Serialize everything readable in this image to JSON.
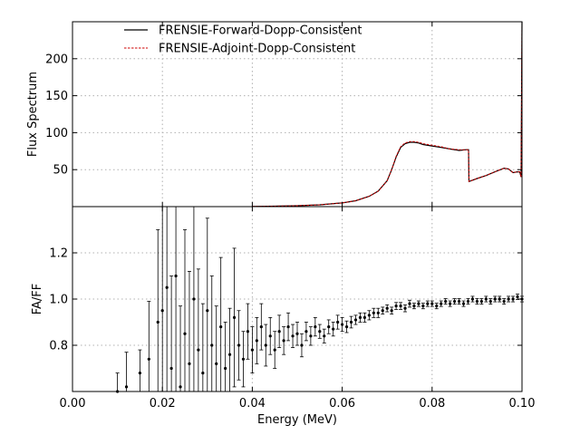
{
  "chart_data": [
    {
      "type": "line",
      "panel": "top",
      "ylabel": "Flux Spectrum",
      "xlim": [
        0.0,
        0.1
      ],
      "ylim": [
        0,
        250
      ],
      "yticks": [
        50,
        100,
        150,
        200
      ],
      "ytick_labels": [
        "50",
        "100",
        "150",
        "200"
      ],
      "grid": true,
      "legend": {
        "placement": "top-left"
      },
      "series": [
        {
          "name": "FRENSIE-Forward-Dopp-Consistent",
          "color": "#000000",
          "style": "solid",
          "x": [
            0.04,
            0.045,
            0.05,
            0.055,
            0.06,
            0.063,
            0.066,
            0.068,
            0.07,
            0.071,
            0.072,
            0.073,
            0.074,
            0.075,
            0.076,
            0.077,
            0.078,
            0.08,
            0.082,
            0.084,
            0.086,
            0.0875,
            0.0881,
            0.0882,
            0.09,
            0.092,
            0.094,
            0.096,
            0.097,
            0.098,
            0.099,
            0.0995,
            0.0998,
            0.1
          ],
          "y": [
            0.2,
            0.6,
            1.2,
            2.5,
            5,
            8,
            14,
            21,
            35,
            50,
            67,
            80,
            85,
            87,
            87,
            86,
            84,
            82,
            80,
            78,
            76,
            77,
            77,
            34,
            38,
            42,
            47,
            52,
            51,
            46,
            47,
            47,
            40,
            250
          ]
        },
        {
          "name": "FRENSIE-Adjoint-Dopp-Consistent",
          "color": "#cc0000",
          "style": "dashed",
          "x": [
            0.04,
            0.045,
            0.05,
            0.055,
            0.06,
            0.063,
            0.066,
            0.068,
            0.07,
            0.071,
            0.072,
            0.073,
            0.074,
            0.075,
            0.076,
            0.077,
            0.078,
            0.08,
            0.082,
            0.084,
            0.086,
            0.0875,
            0.0881,
            0.0882,
            0.09,
            0.092,
            0.094,
            0.096,
            0.097,
            0.098,
            0.099,
            0.0995,
            0.0998,
            0.1
          ],
          "y": [
            0.2,
            0.6,
            1.2,
            2.5,
            5,
            8,
            14,
            21,
            35,
            50,
            68,
            81,
            86,
            88,
            88,
            87,
            85,
            83,
            81,
            78,
            77,
            77,
            77,
            34,
            38,
            42,
            47,
            52,
            51,
            46,
            47,
            47,
            40,
            250
          ]
        }
      ]
    },
    {
      "type": "scatter",
      "panel": "bottom",
      "xlabel": "Energy (MeV)",
      "ylabel": "FA/FF",
      "xlim": [
        0.0,
        0.1
      ],
      "ylim": [
        0.6,
        1.4
      ],
      "xticks": [
        0.0,
        0.02,
        0.04,
        0.06,
        0.08,
        0.1
      ],
      "xtick_labels": [
        "0.00",
        "0.02",
        "0.04",
        "0.06",
        "0.08",
        "0.10"
      ],
      "yticks": [
        0.8,
        1.0,
        1.2
      ],
      "ytick_labels": [
        "0.8",
        "1.0",
        "1.2"
      ],
      "grid": true,
      "error_bars": true,
      "series": [
        {
          "color": "#000000",
          "x": [
            0.01,
            0.012,
            0.015,
            0.017,
            0.019,
            0.02,
            0.021,
            0.022,
            0.023,
            0.024,
            0.025,
            0.026,
            0.027,
            0.028,
            0.029,
            0.03,
            0.031,
            0.032,
            0.033,
            0.034,
            0.035,
            0.036,
            0.037,
            0.038,
            0.039,
            0.04,
            0.041,
            0.042,
            0.043,
            0.044,
            0.045,
            0.046,
            0.047,
            0.048,
            0.049,
            0.05,
            0.051,
            0.052,
            0.053,
            0.054,
            0.055,
            0.056,
            0.057,
            0.058,
            0.059,
            0.06,
            0.061,
            0.062,
            0.063,
            0.064,
            0.065,
            0.066,
            0.067,
            0.068,
            0.069,
            0.07,
            0.071,
            0.072,
            0.073,
            0.074,
            0.075,
            0.076,
            0.077,
            0.078,
            0.079,
            0.08,
            0.081,
            0.082,
            0.083,
            0.084,
            0.085,
            0.086,
            0.087,
            0.088,
            0.089,
            0.09,
            0.091,
            0.092,
            0.093,
            0.094,
            0.095,
            0.096,
            0.097,
            0.098,
            0.099,
            0.1
          ],
          "y": [
            0.6,
            0.62,
            0.68,
            0.74,
            0.9,
            0.95,
            1.05,
            0.7,
            1.1,
            0.62,
            0.85,
            0.72,
            1.0,
            0.78,
            0.68,
            0.95,
            0.8,
            0.72,
            0.88,
            0.7,
            0.76,
            0.92,
            0.8,
            0.74,
            0.86,
            0.78,
            0.82,
            0.88,
            0.8,
            0.84,
            0.78,
            0.86,
            0.82,
            0.88,
            0.84,
            0.85,
            0.8,
            0.86,
            0.84,
            0.88,
            0.86,
            0.84,
            0.88,
            0.87,
            0.9,
            0.89,
            0.88,
            0.9,
            0.91,
            0.92,
            0.92,
            0.93,
            0.94,
            0.94,
            0.95,
            0.96,
            0.95,
            0.97,
            0.97,
            0.96,
            0.98,
            0.97,
            0.98,
            0.97,
            0.98,
            0.98,
            0.97,
            0.98,
            0.99,
            0.98,
            0.99,
            0.99,
            0.98,
            0.99,
            1.0,
            0.99,
            0.99,
            1.0,
            0.99,
            1.0,
            1.0,
            0.99,
            1.0,
            1.0,
            1.01,
            1.0
          ],
          "yerr": [
            0.08,
            0.15,
            0.1,
            0.25,
            0.4,
            0.45,
            0.5,
            0.4,
            0.5,
            0.35,
            0.45,
            0.4,
            0.45,
            0.35,
            0.3,
            0.4,
            0.3,
            0.25,
            0.3,
            0.2,
            0.2,
            0.3,
            0.15,
            0.12,
            0.12,
            0.1,
            0.1,
            0.1,
            0.09,
            0.08,
            0.08,
            0.07,
            0.06,
            0.06,
            0.05,
            0.05,
            0.05,
            0.04,
            0.04,
            0.04,
            0.03,
            0.03,
            0.03,
            0.03,
            0.03,
            0.03,
            0.025,
            0.025,
            0.02,
            0.02,
            0.02,
            0.02,
            0.02,
            0.02,
            0.015,
            0.015,
            0.015,
            0.015,
            0.015,
            0.015,
            0.015,
            0.012,
            0.012,
            0.012,
            0.012,
            0.012,
            0.012,
            0.012,
            0.012,
            0.012,
            0.012,
            0.012,
            0.012,
            0.012,
            0.012,
            0.012,
            0.012,
            0.012,
            0.012,
            0.012,
            0.012,
            0.012,
            0.012,
            0.012,
            0.012,
            0.012
          ]
        }
      ]
    }
  ]
}
